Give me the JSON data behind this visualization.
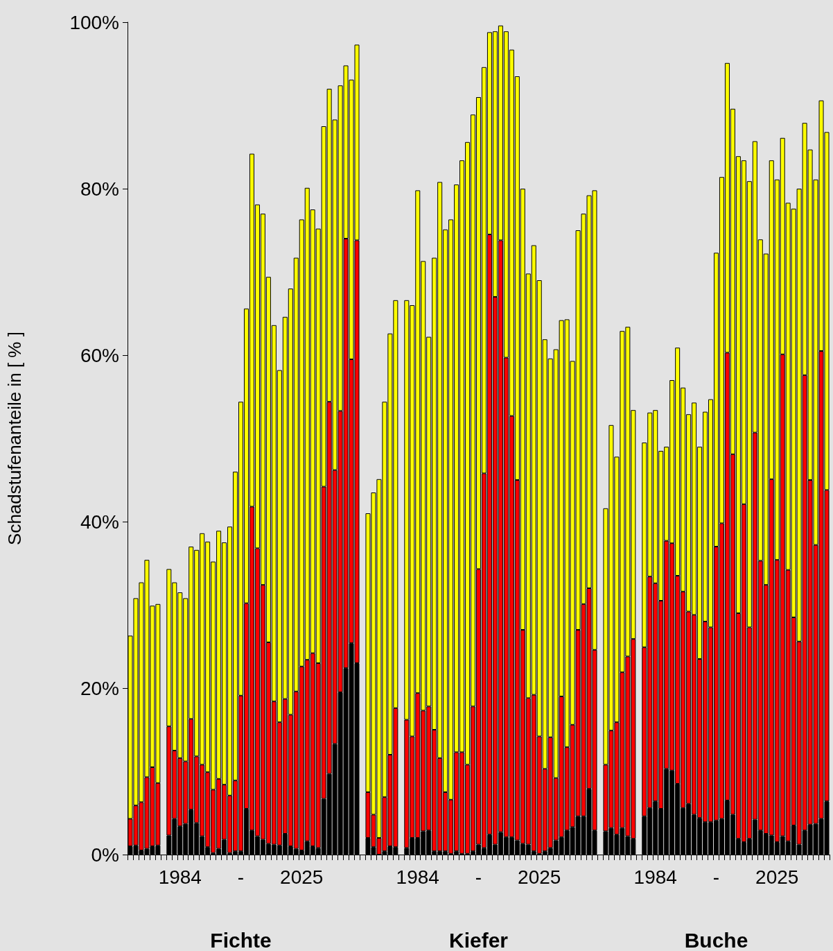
{
  "chart_data": {
    "type": "bar",
    "stacked": true,
    "ylabel": "Schadstufenanteile in [ % ]",
    "categories": [
      null,
      null,
      null,
      null,
      null,
      null,
      null,
      null,
      null,
      "1984",
      null,
      null,
      null,
      null,
      null,
      null,
      null,
      null,
      null,
      null,
      "-",
      null,
      null,
      null,
      null,
      null,
      null,
      null,
      null,
      null,
      null,
      "2025",
      null,
      null,
      null,
      null,
      null,
      null,
      null,
      null,
      null,
      null,
      null,
      null,
      null,
      null,
      null,
      null,
      null,
      null,
      null,
      null,
      "1984",
      null,
      null,
      null,
      null,
      null,
      null,
      null,
      null,
      null,
      null,
      "-",
      null,
      null,
      null,
      null,
      null,
      null,
      null,
      null,
      null,
      null,
      "2025",
      null,
      null,
      null,
      null,
      null,
      null,
      null,
      null,
      null,
      null,
      null,
      null,
      null,
      null,
      null,
      null,
      null,
      null,
      null,
      null,
      "1984",
      null,
      null,
      null,
      null,
      null,
      null,
      null,
      null,
      null,
      null,
      "-",
      null,
      null,
      null,
      null,
      null,
      null,
      null,
      null,
      null,
      null,
      "2025",
      null,
      null,
      null,
      null,
      null,
      null,
      null,
      null,
      null
    ],
    "series": [
      {
        "color": "#000000",
        "values": [
          1.0,
          1.1,
          0.5,
          0.7,
          1.0,
          1.1,
          null,
          2.3,
          4.3,
          3.4,
          3.7,
          5.4,
          3.8,
          2.2,
          0.9,
          0.2,
          0.7,
          1.8,
          0.2,
          0.4,
          0.4,
          5.5,
          2.9,
          2.2,
          1.8,
          1.3,
          1.2,
          1.1,
          2.5,
          1.0,
          0.7,
          0.5,
          1.6,
          1.0,
          0.8,
          6.7,
          9.7,
          13.3,
          19.5,
          22.4,
          25.4,
          23.0,
          null,
          2.0,
          0.9,
          0.0,
          0.4,
          1.0,
          0.9,
          null,
          0.8,
          2.0,
          2.0,
          2.8,
          2.9,
          0.4,
          0.4,
          0.4,
          0.1,
          0.4,
          0.1,
          0.1,
          0.4,
          1.2,
          0.8,
          2.4,
          1.2,
          2.7,
          2.1,
          2.1,
          1.7,
          1.3,
          1.2,
          0.4,
          0.1,
          0.4,
          0.8,
          1.7,
          2.1,
          2.9,
          3.3,
          4.6,
          4.6,
          7.9,
          2.9,
          null,
          2.8,
          3.2,
          2.4,
          3.2,
          2.2,
          1.9,
          null,
          4.6,
          5.6,
          6.4,
          5.5,
          10.3,
          10.1,
          8.5,
          5.6,
          6.1,
          4.8,
          4.4,
          3.9,
          3.9,
          4.1,
          4.3,
          6.5,
          4.8,
          1.9,
          1.5,
          1.9,
          4.2,
          2.9,
          2.5,
          2.3,
          1.5,
          2.2,
          1.6,
          3.5,
          1.2,
          2.9,
          3.6,
          3.7,
          4.3,
          6.4
        ]
      },
      {
        "color": "#ff0000",
        "values": [
          3.3,
          4.8,
          5.8,
          8.6,
          9.5,
          7.5,
          null,
          13.1,
          8.2,
          8.2,
          7.5,
          10.9,
          8.0,
          8.6,
          9.0,
          7.6,
          8.4,
          6.6,
          6.9,
          8.5,
          18.7,
          24.7,
          38.9,
          34.6,
          30.6,
          24.2,
          17.2,
          14.8,
          16.2,
          15.8,
          18.9,
          22.1,
          21.8,
          23.2,
          22.2,
          37.5,
          44.7,
          32.9,
          33.8,
          51.6,
          34.1,
          50.8,
          null,
          5.5,
          3.9,
          2.0,
          6.5,
          11.0,
          16.7,
          null,
          15.4,
          12.2,
          17.4,
          14.5,
          14.9,
          14.6,
          11.2,
          7.1,
          6.5,
          11.9,
          12.2,
          10.7,
          17.4,
          33.1,
          45.0,
          72.1,
          65.8,
          71.1,
          57.6,
          50.6,
          43.3,
          25.7,
          17.6,
          18.8,
          14.1,
          9.9,
          13.3,
          7.5,
          16.9,
          10.0,
          12.3,
          22.4,
          25.5,
          24.1,
          21.7,
          null,
          8.0,
          11.7,
          13.5,
          18.7,
          21.6,
          24.0,
          null,
          20.3,
          27.8,
          26.2,
          25.0,
          27.4,
          27.3,
          25.0,
          26.0,
          23.1,
          24.0,
          19.1,
          24.1,
          23.4,
          32.9,
          35.5,
          53.8,
          43.3,
          27.1,
          40.6,
          25.4,
          46.5,
          32.4,
          29.9,
          42.8,
          33.9,
          57.9,
          32.6,
          25.0,
          24.4,
          54.7,
          41.4,
          33.5,
          56.2,
          37.4
        ]
      },
      {
        "color": "#ffff00",
        "values": [
          22.0,
          24.9,
          26.4,
          26.1,
          19.4,
          21.5,
          null,
          18.9,
          20.2,
          19.9,
          19.6,
          20.7,
          24.8,
          27.8,
          27.7,
          27.4,
          29.8,
          29.1,
          32.3,
          37.1,
          35.3,
          35.4,
          42.4,
          41.3,
          44.6,
          43.9,
          45.2,
          42.3,
          45.9,
          51.2,
          52.1,
          53.7,
          56.7,
          53.3,
          52.2,
          43.3,
          37.6,
          42.1,
          39.1,
          20.8,
          33.6,
          23.5,
          null,
          33.5,
          38.7,
          43.1,
          47.5,
          50.6,
          49.0,
          null,
          50.4,
          51.8,
          60.4,
          54.0,
          44.4,
          56.7,
          69.2,
          67.6,
          69.7,
          68.2,
          71.1,
          74.8,
          71.1,
          56.7,
          48.8,
          24.3,
          31.9,
          25.8,
          39.2,
          44.0,
          48.5,
          53.0,
          51.0,
          54.0,
          54.8,
          51.6,
          45.5,
          51.5,
          45.2,
          51.4,
          43.7,
          48.0,
          46.9,
          47.2,
          55.2,
          null,
          30.8,
          36.7,
          31.9,
          41.0,
          39.6,
          27.5,
          null,
          24.6,
          19.7,
          20.8,
          18.0,
          11.3,
          19.6,
          27.4,
          24.5,
          23.7,
          25.5,
          25.5,
          25.2,
          27.4,
          35.3,
          41.6,
          34.8,
          41.5,
          54.9,
          41.3,
          53.6,
          35.0,
          38.6,
          39.8,
          38.3,
          45.7,
          26.0,
          44.1,
          49.1,
          54.4,
          30.3,
          39.7,
          43.9,
          30.1,
          43.0
        ]
      }
    ],
    "ylim": [
      0,
      100
    ],
    "yticks": [
      {
        "value": 0,
        "label": "0%"
      },
      {
        "value": 20,
        "label": "20%"
      },
      {
        "value": 40,
        "label": "40%"
      },
      {
        "value": 60,
        "label": "60%"
      },
      {
        "value": 80,
        "label": "80%"
      },
      {
        "value": 100,
        "label": "100%"
      }
    ],
    "annotations": [
      "Fichte",
      "Kiefer",
      "Buche"
    ]
  }
}
